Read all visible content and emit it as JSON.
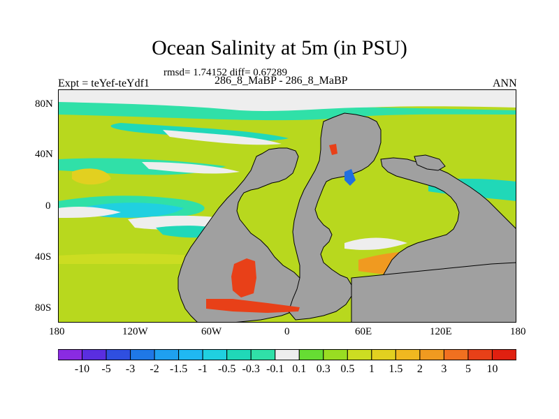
{
  "title": "Ocean Salinity at 5m (in PSU)",
  "stats": "rmsd= 1.74152 diff= 0.67289",
  "comparison": "286_8_MaBP - 286_8_MaBP",
  "experiment": "Expt = teYef-teYdf1",
  "season": "ANN",
  "lon_ticks": [
    "180",
    "120W",
    "60W",
    "0",
    "60E",
    "120E",
    "180"
  ],
  "lat_ticks": [
    "80N",
    "40N",
    "0",
    "40S",
    "80S"
  ],
  "colorbar": {
    "labels": [
      "-10",
      "-5",
      "-3",
      "-2",
      "-1.5",
      "-1",
      "-0.5",
      "-0.3",
      "-0.1",
      "0.1",
      "0.3",
      "0.5",
      "1",
      "1.5",
      "2",
      "3",
      "5",
      "10"
    ],
    "colors": [
      "#8a2be2",
      "#5a2ee0",
      "#2f4fe0",
      "#1f78e6",
      "#1fa0ef",
      "#20b8f2",
      "#20d0e0",
      "#20d8b8",
      "#30e0a8",
      "#eeeeee",
      "#66dd33",
      "#99dd22",
      "#ccdd22",
      "#e2d020",
      "#f0b820",
      "#f09a20",
      "#f07020",
      "#e84018",
      "#e02010"
    ]
  },
  "colors": {
    "land": "#a0a0a0",
    "ocean_base": "#b8d81e",
    "zero_band": "#eeeeee",
    "positive_strong": "#e84a1a",
    "negative": "#28c8e0",
    "negative_strong": "#2070e0"
  }
}
